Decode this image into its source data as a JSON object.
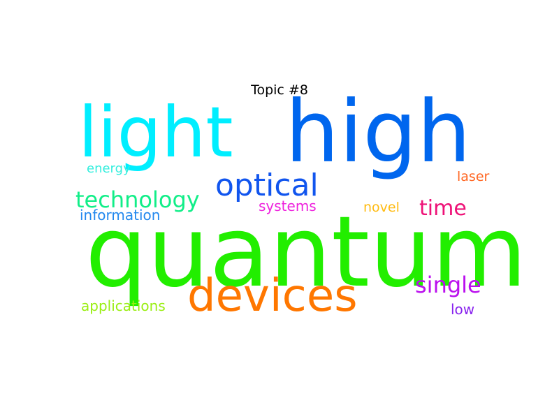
{
  "title": "Topic #8",
  "words": [
    {
      "text": "quantum",
      "color": "#22ee00"
    },
    {
      "text": "high",
      "color": "#0066ee"
    },
    {
      "text": "light",
      "color": "#00eeff"
    },
    {
      "text": "devices",
      "color": "#ff7700"
    },
    {
      "text": "optical",
      "color": "#1155ee"
    },
    {
      "text": "technology",
      "color": "#11ee88"
    },
    {
      "text": "time",
      "color": "#ee1177"
    },
    {
      "text": "single",
      "color": "#bb11ee"
    },
    {
      "text": "systems",
      "color": "#ee22dd"
    },
    {
      "text": "information",
      "color": "#2288ee"
    },
    {
      "text": "energy",
      "color": "#33eedd"
    },
    {
      "text": "laser",
      "color": "#ff6622"
    },
    {
      "text": "novel",
      "color": "#ffbb11"
    },
    {
      "text": "applications",
      "color": "#99ee11"
    },
    {
      "text": "low",
      "color": "#8822ee"
    }
  ]
}
